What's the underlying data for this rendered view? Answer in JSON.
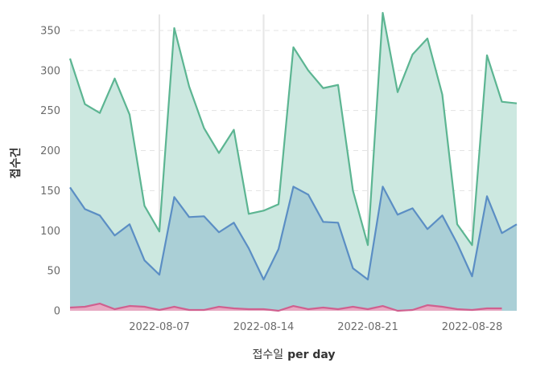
{
  "chart_data": {
    "type": "area",
    "xlabel": "접수일 per day",
    "ylabel": "접수건",
    "ylim": [
      0,
      370
    ],
    "yticks": [
      0,
      50,
      100,
      150,
      200,
      250,
      300,
      350
    ],
    "xticks": [
      "2022-08-07",
      "2022-08-14",
      "2022-08-21",
      "2022-08-28"
    ],
    "grid": "horizontal dashed",
    "legend": "none",
    "x": [
      "2022-08-01",
      "2022-08-02",
      "2022-08-03",
      "2022-08-04",
      "2022-08-05",
      "2022-08-06",
      "2022-08-07",
      "2022-08-08",
      "2022-08-09",
      "2022-08-10",
      "2022-08-11",
      "2022-08-12",
      "2022-08-13",
      "2022-08-14",
      "2022-08-15",
      "2022-08-16",
      "2022-08-17",
      "2022-08-18",
      "2022-08-19",
      "2022-08-20",
      "2022-08-21",
      "2022-08-22",
      "2022-08-23",
      "2022-08-24",
      "2022-08-25",
      "2022-08-26",
      "2022-08-27",
      "2022-08-28",
      "2022-08-29",
      "2022-08-30",
      "2022-08-31"
    ],
    "series": [
      {
        "color": "#5cb592",
        "fill": "#cce8e0",
        "values": [
          315,
          258,
          247,
          290,
          245,
          131,
          99,
          353,
          280,
          228,
          197,
          226,
          121,
          125,
          133,
          329,
          300,
          278,
          282,
          150,
          82,
          372,
          273,
          320,
          340,
          270,
          108,
          82,
          319,
          261,
          259
        ]
      },
      {
        "color": "#5b8ec4",
        "fill": "#aacfd6",
        "values": [
          154,
          127,
          119,
          94,
          108,
          63,
          45,
          142,
          117,
          118,
          98,
          110,
          78,
          39,
          77,
          155,
          145,
          111,
          110,
          53,
          39,
          155,
          120,
          128,
          102,
          119,
          84,
          43,
          143,
          97,
          108
        ]
      },
      {
        "color": "#d0608f",
        "fill": "#e7a9c2",
        "values": [
          4,
          5,
          9,
          2,
          6,
          5,
          1,
          5,
          1,
          1,
          5,
          3,
          2,
          2,
          0,
          6,
          2,
          4,
          2,
          5,
          2,
          6,
          0,
          1,
          7,
          5,
          2,
          1,
          3,
          3,
          null
        ]
      }
    ]
  }
}
